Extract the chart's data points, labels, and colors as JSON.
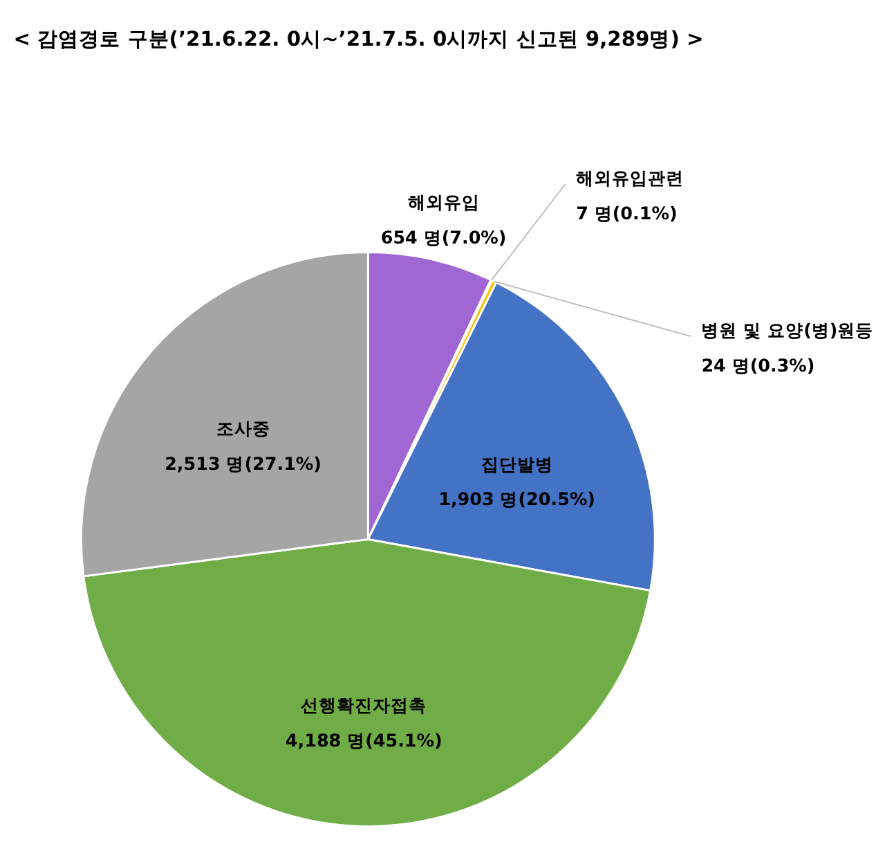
{
  "chart_data": {
    "type": "pie",
    "title": "< 감염경로 구분(’21.6.22. 0시~’21.7.5. 0시까지 신고된 9,289명) >",
    "categories": [
      "해외유입",
      "해외유입관련",
      "병원 및 요양(병)원등",
      "집단발병",
      "선행확진자접촉",
      "조사중"
    ],
    "values": [
      654,
      7,
      24,
      1903,
      4188,
      2513
    ],
    "colors": [
      "#a066d3",
      "#ed7d31",
      "#ffc000",
      "#4472c4",
      "#70ad47",
      "#a5a5a5"
    ],
    "value_labels": [
      "654 명(7.0%)",
      "7 명(0.1%)",
      "24 명(0.3%)",
      "1,903 명(20.5%)",
      "4,188 명(45.1%)",
      "2,513 명(27.1%)"
    ],
    "legend": false
  }
}
